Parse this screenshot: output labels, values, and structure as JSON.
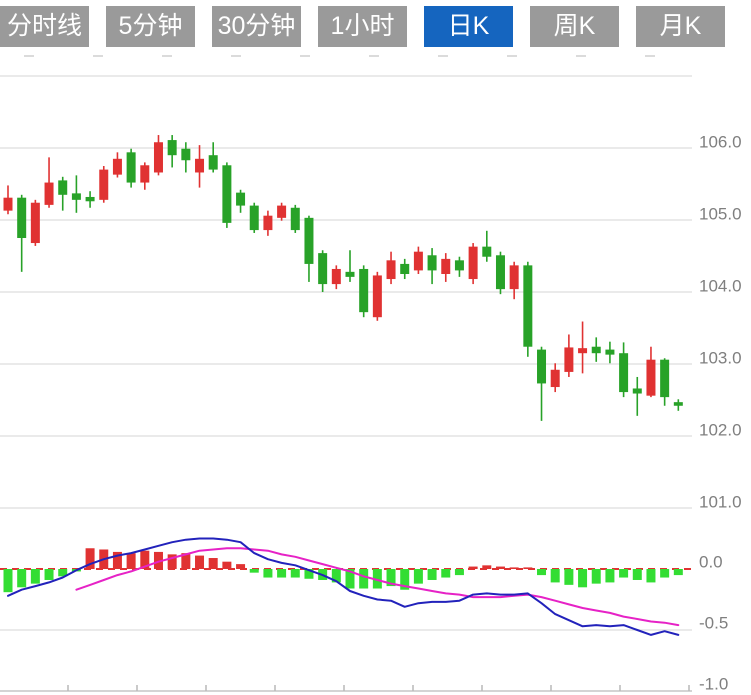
{
  "toolbar": {
    "buttons": [
      {
        "label": "分时线",
        "active": false
      },
      {
        "label": "5分钟",
        "active": false
      },
      {
        "label": "30分钟",
        "active": false
      },
      {
        "label": "1小时",
        "active": false
      },
      {
        "label": "日K",
        "active": true
      },
      {
        "label": "周K",
        "active": false
      },
      {
        "label": "月K",
        "active": false
      }
    ]
  },
  "colors": {
    "candle_up": "#e03232",
    "candle_down": "#28a228",
    "macd_bar_up": "#e03232",
    "macd_bar_down": "#33dd33",
    "dif_line": "#2222bb",
    "dea_line": "#e622c6",
    "grid": "#e3e3e3",
    "axis_line": "#c6c6c6",
    "axis_text": "#7f7f7f",
    "zero_line": "#e03232",
    "button_active": "#1565bf",
    "button_inactive": "#9a9a9a"
  },
  "chart_data": {
    "type": "candlestick+macd",
    "timeframe_selected": "日K",
    "price_panel": {
      "ylim": [
        101,
        107
      ],
      "gridlines": [
        107,
        106,
        105,
        104,
        103,
        102,
        101
      ],
      "ticks": [
        {
          "value": 106,
          "label": "106.0"
        },
        {
          "value": 105,
          "label": "105.0"
        },
        {
          "value": 104,
          "label": "104.0"
        },
        {
          "value": 103,
          "label": "103.0"
        },
        {
          "value": 102,
          "label": "102.0"
        },
        {
          "value": 101,
          "label": "101.0"
        }
      ]
    },
    "candles_ohlc": [
      [
        105.13,
        105.48,
        105.08,
        105.31
      ],
      [
        105.31,
        105.35,
        104.28,
        104.75
      ],
      [
        104.68,
        105.28,
        104.64,
        105.24
      ],
      [
        105.21,
        105.87,
        105.17,
        105.52
      ],
      [
        105.55,
        105.6,
        105.13,
        105.35
      ],
      [
        105.37,
        105.62,
        105.1,
        105.28
      ],
      [
        105.32,
        105.4,
        105.17,
        105.26
      ],
      [
        105.28,
        105.75,
        105.24,
        105.7
      ],
      [
        105.63,
        105.94,
        105.59,
        105.85
      ],
      [
        105.94,
        105.99,
        105.45,
        105.52
      ],
      [
        105.52,
        105.8,
        105.42,
        105.76
      ],
      [
        105.66,
        106.18,
        105.62,
        106.08
      ],
      [
        106.11,
        106.18,
        105.73,
        105.9
      ],
      [
        105.99,
        106.08,
        105.66,
        105.83
      ],
      [
        105.66,
        106.04,
        105.45,
        105.85
      ],
      [
        105.9,
        106.08,
        105.66,
        105.7
      ],
      [
        105.76,
        105.8,
        104.89,
        104.96
      ],
      [
        105.38,
        105.42,
        105.1,
        105.2
      ],
      [
        105.2,
        105.24,
        104.82,
        104.86
      ],
      [
        104.86,
        105.13,
        104.78,
        105.06
      ],
      [
        105.03,
        105.24,
        104.99,
        105.2
      ],
      [
        105.17,
        105.21,
        104.82,
        104.86
      ],
      [
        105.03,
        105.06,
        104.14,
        104.39
      ],
      [
        104.54,
        104.58,
        104.0,
        104.11
      ],
      [
        104.11,
        104.37,
        104.04,
        104.32
      ],
      [
        104.28,
        104.58,
        104.14,
        104.21
      ],
      [
        104.32,
        104.37,
        103.65,
        103.72
      ],
      [
        103.65,
        104.28,
        103.6,
        104.23
      ],
      [
        104.18,
        104.56,
        104.11,
        104.44
      ],
      [
        104.39,
        104.46,
        104.18,
        104.25
      ],
      [
        104.3,
        104.63,
        104.25,
        104.56
      ],
      [
        104.51,
        104.61,
        104.11,
        104.3
      ],
      [
        104.25,
        104.54,
        104.14,
        104.46
      ],
      [
        104.44,
        104.49,
        104.21,
        104.3
      ],
      [
        104.18,
        104.68,
        104.11,
        104.63
      ],
      [
        104.63,
        104.85,
        104.42,
        104.49
      ],
      [
        104.51,
        104.56,
        103.97,
        104.04
      ],
      [
        104.04,
        104.42,
        103.9,
        104.37
      ],
      [
        104.37,
        104.42,
        103.1,
        103.24
      ],
      [
        103.2,
        103.24,
        102.21,
        102.73
      ],
      [
        102.68,
        103.01,
        102.61,
        102.92
      ],
      [
        102.89,
        103.41,
        102.82,
        103.23
      ],
      [
        103.15,
        103.59,
        102.87,
        103.22
      ],
      [
        103.24,
        103.37,
        103.03,
        103.15
      ],
      [
        103.2,
        103.31,
        103.01,
        103.13
      ],
      [
        103.15,
        103.3,
        102.54,
        102.61
      ],
      [
        102.66,
        102.82,
        102.28,
        102.59
      ],
      [
        102.56,
        103.24,
        102.54,
        103.06
      ],
      [
        103.06,
        103.08,
        102.42,
        102.54
      ],
      [
        102.47,
        102.51,
        102.35,
        102.42
      ]
    ],
    "macd_panel": {
      "ylim": [
        -1.0,
        0.3
      ],
      "gridlines": [
        -0.5
      ],
      "ticks": [
        {
          "value": 0,
          "label": "0.0"
        },
        {
          "value": -0.5,
          "label": "-0.5"
        },
        {
          "value": -1,
          "label": "-1.0"
        }
      ],
      "hist": [
        -0.19,
        -0.15,
        -0.12,
        -0.09,
        -0.06,
        -0.02,
        0.17,
        0.16,
        0.14,
        0.13,
        0.15,
        0.14,
        0.12,
        0.13,
        0.11,
        0.09,
        0.06,
        0.04,
        -0.03,
        -0.07,
        -0.07,
        -0.07,
        -0.08,
        -0.09,
        -0.11,
        -0.16,
        -0.16,
        -0.16,
        -0.14,
        -0.17,
        -0.12,
        -0.09,
        -0.07,
        -0.05,
        0.02,
        0.03,
        0.02,
        0.01,
        0.01,
        -0.05,
        -0.11,
        -0.13,
        -0.15,
        -0.12,
        -0.11,
        -0.07,
        -0.09,
        -0.11,
        -0.07,
        -0.05
      ],
      "dif": [
        -0.22,
        -0.17,
        -0.14,
        -0.11,
        -0.07,
        -0.01,
        0.04,
        0.08,
        0.11,
        0.13,
        0.16,
        0.19,
        0.22,
        0.24,
        0.25,
        0.25,
        0.24,
        0.22,
        0.13,
        0.08,
        0.05,
        0.03,
        -0.01,
        -0.05,
        -0.1,
        -0.18,
        -0.22,
        -0.25,
        -0.26,
        -0.31,
        -0.28,
        -0.27,
        -0.27,
        -0.26,
        -0.21,
        -0.2,
        -0.21,
        -0.21,
        -0.2,
        -0.28,
        -0.37,
        -0.42,
        -0.47,
        -0.46,
        -0.47,
        -0.46,
        -0.5,
        -0.54,
        -0.51,
        -0.54
      ],
      "dea": [
        null,
        null,
        null,
        null,
        null,
        -0.17,
        -0.13,
        -0.09,
        -0.05,
        -0.02,
        0.02,
        0.06,
        0.09,
        0.12,
        0.15,
        0.16,
        0.17,
        0.17,
        0.16,
        0.15,
        0.12,
        0.1,
        0.07,
        0.04,
        0.01,
        -0.02,
        -0.06,
        -0.09,
        -0.12,
        -0.14,
        -0.16,
        -0.18,
        -0.2,
        -0.21,
        -0.23,
        -0.23,
        -0.23,
        -0.22,
        -0.21,
        -0.23,
        -0.26,
        -0.29,
        -0.32,
        -0.34,
        -0.36,
        -0.39,
        -0.41,
        -0.43,
        -0.44,
        -0.46
      ]
    }
  }
}
